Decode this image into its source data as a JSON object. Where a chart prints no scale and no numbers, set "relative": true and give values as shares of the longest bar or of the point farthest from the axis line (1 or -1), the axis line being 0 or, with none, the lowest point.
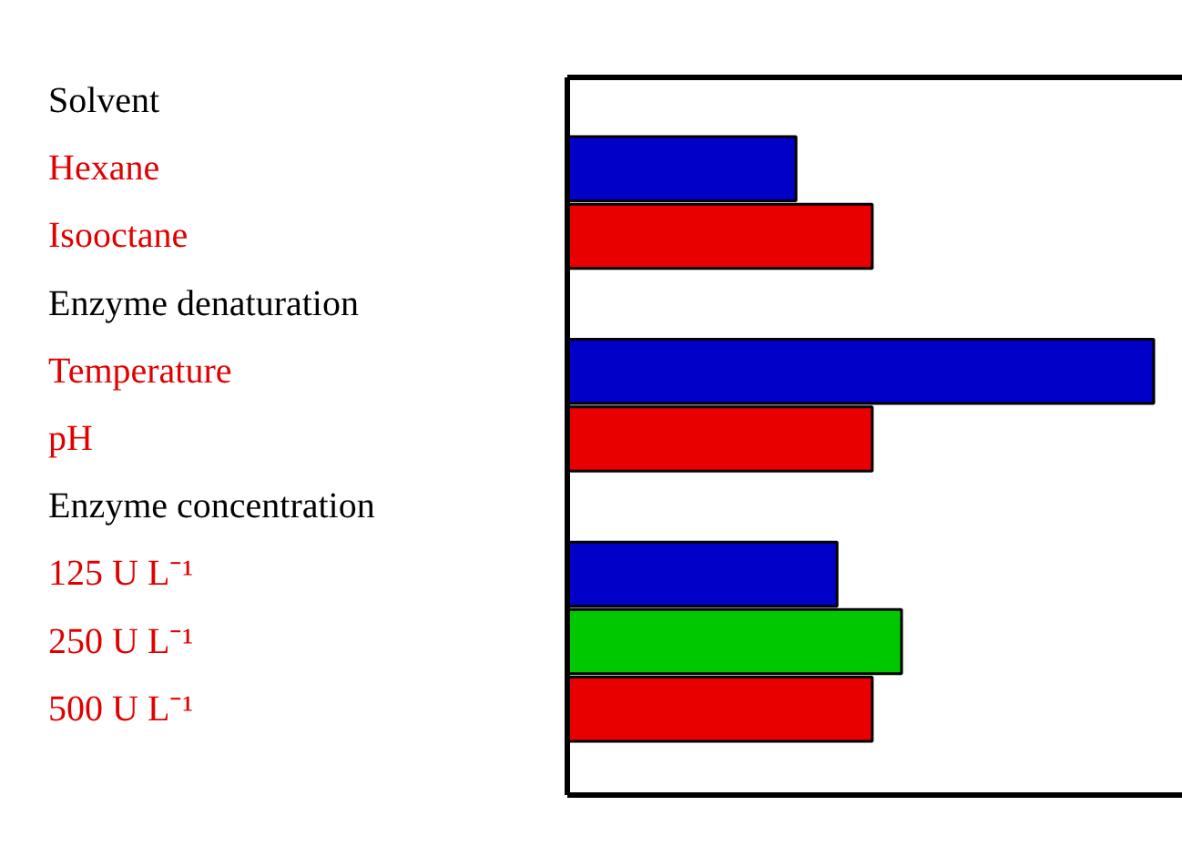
{
  "chart_data": {
    "type": "bar",
    "orientation": "horizontal",
    "relative": true,
    "categories": [
      "Solvent",
      "Hexane",
      "Isooctane",
      "Enzyme denaturation",
      "Temperature",
      "pH",
      "Enzyme concentration",
      "125 U L⁻¹",
      "250 U L⁻¹",
      "500 U L⁻¹"
    ],
    "values": [
      null,
      0.39,
      0.52,
      null,
      1,
      0.52,
      null,
      0.46,
      0.57,
      0.52
    ],
    "colors": [
      null,
      "#0000c8",
      "#e80000",
      null,
      "#0000c8",
      "#e80000",
      null,
      "#0000c8",
      "#00c800",
      "#e80000"
    ]
  }
}
